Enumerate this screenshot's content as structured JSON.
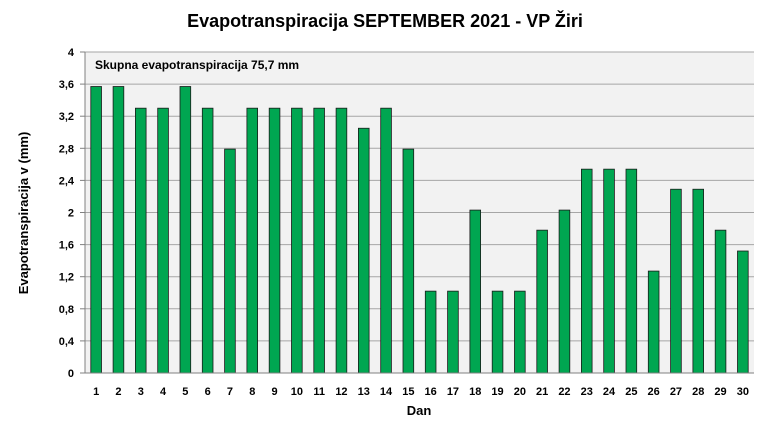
{
  "chart_data": {
    "type": "bar",
    "title": "Evapotranspiracija  SEPTEMBER  2021 - VP Žiri",
    "xlabel": "Dan",
    "ylabel": "Evapotranspiracija v  (mm)",
    "annotation": "Skupna evapotranspiracija  75,7 mm",
    "ylim": [
      0,
      4
    ],
    "yticks": [
      "0",
      "0,4",
      "0,8",
      "1,2",
      "1,6",
      "2",
      "2,4",
      "2,8",
      "3,2",
      "3,6",
      "4"
    ],
    "categories": [
      "1",
      "2",
      "3",
      "4",
      "5",
      "6",
      "7",
      "8",
      "9",
      "10",
      "11",
      "12",
      "13",
      "14",
      "15",
      "16",
      "17",
      "18",
      "19",
      "20",
      "21",
      "22",
      "23",
      "24",
      "25",
      "26",
      "27",
      "28",
      "29",
      "30"
    ],
    "values": [
      3.57,
      3.57,
      3.3,
      3.3,
      3.57,
      3.3,
      2.79,
      3.3,
      3.3,
      3.3,
      3.3,
      3.3,
      3.05,
      3.3,
      2.79,
      1.02,
      1.02,
      2.03,
      1.02,
      1.02,
      1.78,
      2.03,
      2.54,
      2.54,
      2.54,
      1.27,
      2.29,
      2.29,
      1.78,
      1.52
    ],
    "grid": true,
    "colors": {
      "bar": "#00a651",
      "bar_edge": "#1a1a1a",
      "plot_bg": "#f2f2f2",
      "grid": "#a6a6a6",
      "axis": "#808080"
    }
  }
}
